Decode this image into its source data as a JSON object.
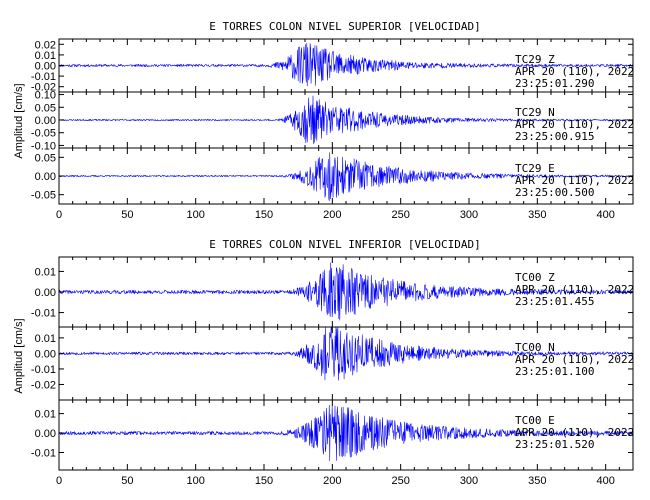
{
  "colors": {
    "trace": "#0000ff",
    "axes": "#000000",
    "background": "#ffffff"
  },
  "chart_data": [
    {
      "type": "line",
      "title": "E TORRES COLON NIVEL SUPERIOR [VELOCIDAD]",
      "ylabel": "Amplitud [cm/s]",
      "xlabel": "",
      "xlim": [
        0,
        420
      ],
      "x_ticks": [
        "0",
        "50",
        "100",
        "150",
        "200",
        "250",
        "300",
        "350",
        "400"
      ],
      "grid": false,
      "panels": [
        {
          "channel": "TC29  Z",
          "date": "APR 20 (110), 2022",
          "time": "23:25:01.290",
          "ylim": [
            -0.025,
            0.025
          ],
          "y_ticks": [
            "0.02",
            "0.01",
            "0.00",
            "-0.01",
            "-0.02"
          ],
          "envelope": {
            "noise": 0.0012,
            "onset": 150,
            "peak": 180,
            "decay": 35,
            "peak_amp": 0.024,
            "seed": 11
          }
        },
        {
          "channel": "TC29  N",
          "date": "APR 20 (110), 2022",
          "time": "23:25:00.915",
          "ylim": [
            -0.11,
            0.11
          ],
          "y_ticks": [
            "0.10",
            "0.05",
            "0.00",
            "-0.05",
            "-0.10"
          ],
          "envelope": {
            "noise": 0.003,
            "onset": 158,
            "peak": 182,
            "decay": 38,
            "peak_amp": 0.105,
            "seed": 23
          }
        },
        {
          "channel": "TC29  E",
          "date": "APR 20 (110), 2022",
          "time": "23:25:00.500",
          "ylim": [
            -0.075,
            0.075
          ],
          "y_ticks": [
            "0.05",
            "0.00",
            "-0.05"
          ],
          "envelope": {
            "noise": 0.002,
            "onset": 160,
            "peak": 196,
            "decay": 45,
            "peak_amp": 0.07,
            "seed": 37
          }
        }
      ]
    },
    {
      "type": "line",
      "title": "E TORRES COLON NIVEL INFERIOR [VELOCIDAD]",
      "ylabel": "Amplitud [cm/s]",
      "xlabel": "",
      "xlim": [
        0,
        420
      ],
      "x_ticks": [
        "0",
        "50",
        "100",
        "150",
        "200",
        "250",
        "300",
        "350",
        "400"
      ],
      "grid": false,
      "panels": [
        {
          "channel": "TC00  Z",
          "date": "APR 20 (110), 2022",
          "time": "23:25:01.455",
          "ylim": [
            -0.017,
            0.017
          ],
          "y_ticks": [
            "0.01",
            "0.00",
            "-0.01"
          ],
          "envelope": {
            "noise": 0.0009,
            "onset": 165,
            "peak": 200,
            "decay": 42,
            "peak_amp": 0.016,
            "seed": 41
          }
        },
        {
          "channel": "TC00  N",
          "date": "APR 20 (110), 2022",
          "time": "23:25:01.100",
          "ylim": [
            -0.03,
            0.017
          ],
          "y_ticks": [
            "0.01",
            "0.00",
            "-0.01",
            "-0.02"
          ],
          "envelope": {
            "noise": 0.0009,
            "onset": 165,
            "peak": 198,
            "decay": 40,
            "peak_amp": 0.022,
            "seed": 53
          }
        },
        {
          "channel": "TC00  E",
          "date": "APR 20 (110), 2022",
          "time": "23:25:01.520",
          "ylim": [
            -0.019,
            0.017
          ],
          "y_ticks": [
            "0.01",
            "0.00",
            "-0.01"
          ],
          "envelope": {
            "noise": 0.0009,
            "onset": 160,
            "peak": 200,
            "decay": 45,
            "peak_amp": 0.017,
            "seed": 67
          }
        }
      ]
    }
  ]
}
